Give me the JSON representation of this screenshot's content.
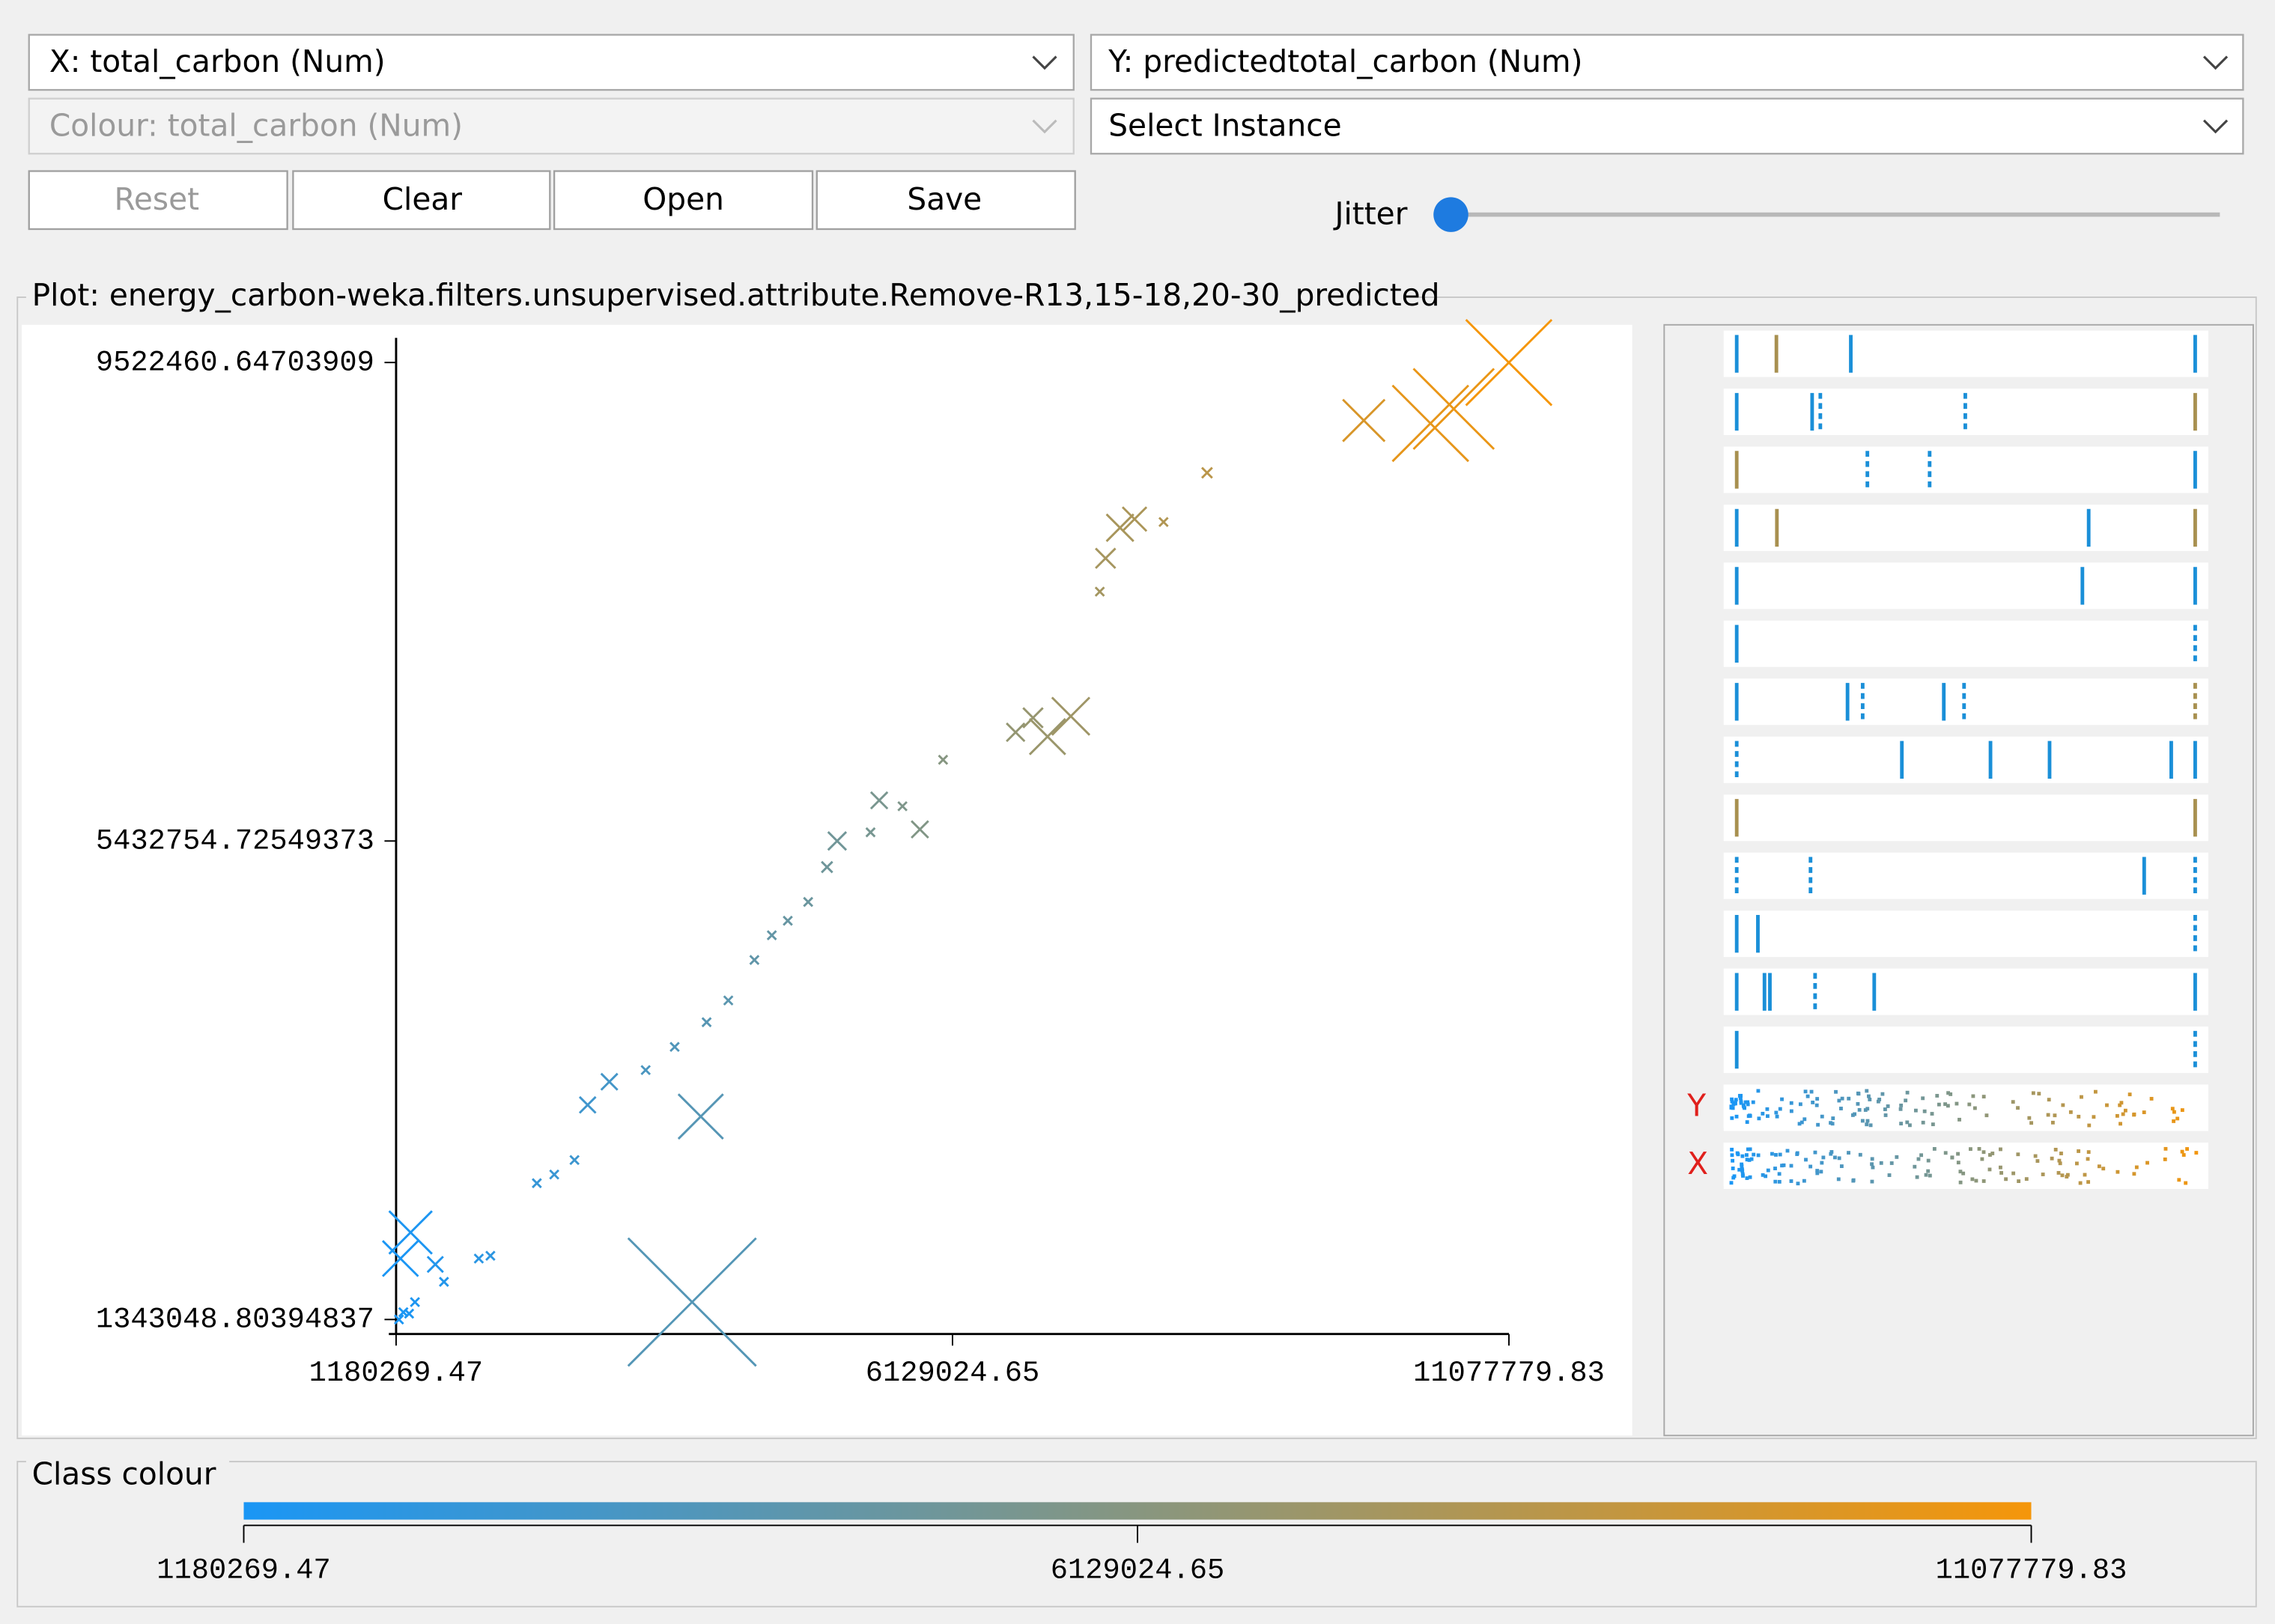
{
  "controls": {
    "x_select": "X: total_carbon (Num)",
    "y_select": "Y: predictedtotal_carbon (Num)",
    "colour_select": "Colour: total_carbon (Num)",
    "instance_select": "Select Instance",
    "buttons": [
      "Reset",
      "Clear",
      "Open",
      "Save"
    ],
    "jitter_label": "Jitter"
  },
  "chart_data": {
    "type": "scatter",
    "title": "Plot: energy_carbon-weka.filters.unsupervised.attribute.Remove-R13,15-18,20-30_predicted",
    "xlim": [
      1180269.47,
      11077779.83
    ],
    "xticks": [
      1180269.47,
      6129024.65,
      11077779.83
    ],
    "ylim": [
      1343048.80394837,
      9522460.64703909
    ],
    "yticks": [
      1343048.80394837,
      5432754.72549373,
      9522460.64703909
    ],
    "x": [
      1206000,
      1245000,
      1296000,
      1348000,
      1219000,
      1309000,
      1529000,
      1606000,
      1916000,
      2019000,
      2432000,
      2587000,
      2767000,
      2884000,
      3077000,
      3400000,
      3658000,
      3890000,
      3813000,
      3942000,
      4135000,
      4367000,
      4522000,
      4664000,
      4845000,
      5013000,
      5103000,
      5400000,
      5477000,
      5684000,
      5839000,
      6045000,
      6690000,
      6845000,
      6974000,
      7181000,
      7439000,
      7490000,
      7619000,
      7748000,
      8006000,
      8393000,
      9787000,
      10380000,
      10587000,
      11077000
    ],
    "y": [
      1343000,
      1405000,
      1393000,
      1492000,
      1864000,
      2087000,
      1814000,
      1665000,
      1864000,
      1888000,
      2508000,
      2582000,
      2706000,
      3177000,
      3375000,
      3475000,
      3673000,
      3078000,
      1492000,
      3884000,
      4070000,
      4416000,
      4627000,
      4751000,
      4912000,
      5210000,
      5433000,
      5507000,
      5780000,
      5730000,
      5532000,
      6127000,
      6362000,
      6486000,
      6325000,
      6499000,
      7564000,
      7849000,
      8110000,
      8184000,
      8159000,
      8580000,
      9027000,
      9002000,
      9126000,
      9522000
    ]
  },
  "attribute_panel": {
    "labels": [
      "Y",
      "X"
    ]
  },
  "class_colour": {
    "title": "Class colour",
    "ticks": [
      1180269.47,
      6129024.65,
      11077779.83
    ],
    "colors": [
      "#1a96f5",
      "#f5960a"
    ]
  }
}
